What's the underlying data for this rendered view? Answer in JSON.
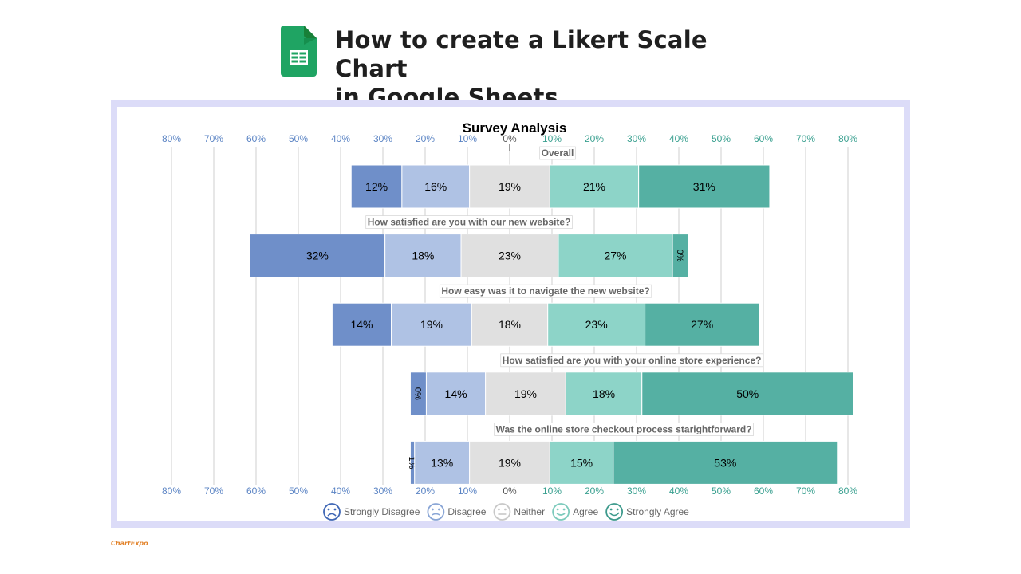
{
  "page": {
    "title": "How to create a Likert Scale Chart\nin Google Sheets",
    "logo_icon": "google-sheets-icon",
    "brand": "ChartExpo"
  },
  "chart_data": {
    "type": "bar",
    "subtype": "diverging-stacked-likert",
    "title": "Survey Analysis",
    "axis_ticks": [
      "80%",
      "70%",
      "60%",
      "50%",
      "40%",
      "30%",
      "20%",
      "10%",
      "0%",
      "10%",
      "20%",
      "30%",
      "40%",
      "50%",
      "60%",
      "70%",
      "80%"
    ],
    "axis_range": [
      -80,
      80
    ],
    "axis_position": "top-and-bottom",
    "grid": true,
    "legend_position": "bottom",
    "categories": [
      "Overall",
      "How satisfied are you with our new website?",
      "How easy was it to navigate the new website?",
      "How satisfied are you with your online store experience?",
      "Was the online store checkout process starightforward?"
    ],
    "series": [
      {
        "name": "Strongly Disagree",
        "color": "#6f8fc9",
        "icon": "very-sad-face-icon",
        "values": [
          12,
          32,
          14,
          0,
          1
        ]
      },
      {
        "name": "Disagree",
        "color": "#afc2e4",
        "icon": "sad-face-icon",
        "values": [
          16,
          18,
          19,
          14,
          13
        ]
      },
      {
        "name": "Neither",
        "color": "#e0e0e0",
        "icon": "neutral-face-icon",
        "values": [
          19,
          23,
          18,
          19,
          19
        ]
      },
      {
        "name": "Agree",
        "color": "#8dd4c8",
        "icon": "smile-face-icon",
        "values": [
          21,
          27,
          23,
          18,
          15
        ]
      },
      {
        "name": "Strongly Agree",
        "color": "#55b0a3",
        "icon": "big-smile-face-icon",
        "values": [
          31,
          0,
          27,
          50,
          53
        ]
      }
    ],
    "negative_axis_color": "#5b84c4",
    "positive_axis_color": "#3aa090"
  }
}
